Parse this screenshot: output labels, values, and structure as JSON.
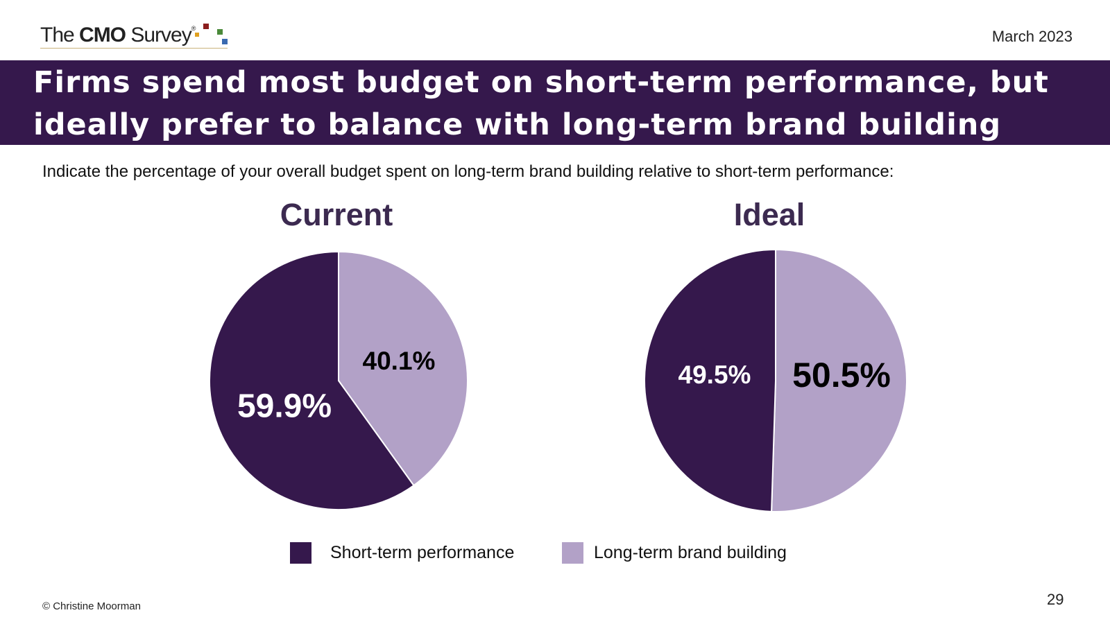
{
  "logo": {
    "prefix": "The ",
    "brand": "CMO",
    "suffix": " Survey",
    "registered": "®",
    "dot_colors": [
      "#8b1e1e",
      "#e0a020",
      "#4a8a3a",
      "#3a6ab0"
    ]
  },
  "date": "March 2023",
  "title": "Firms spend most budget on short-term performance, but ideally prefer to balance with long-term brand building",
  "question": "Indicate the percentage of your overall budget spent on long-term brand building relative to short-term performance:",
  "colors": {
    "banner": "#35184c",
    "short_term": "#35184c",
    "long_term": "#b2a1c7"
  },
  "chart_data": [
    {
      "type": "pie",
      "title": "Current",
      "categories": [
        "Short-term performance",
        "Long-term brand building"
      ],
      "values": [
        59.9,
        40.1
      ],
      "labels": [
        "59.9%",
        "40.1%"
      ]
    },
    {
      "type": "pie",
      "title": "Ideal",
      "categories": [
        "Short-term performance",
        "Long-term brand building"
      ],
      "values": [
        49.5,
        50.5
      ],
      "labels": [
        "49.5%",
        "50.5%"
      ]
    }
  ],
  "legend": [
    {
      "label": "Short-term performance",
      "color": "#35184c"
    },
    {
      "label": "Long-term brand building",
      "color": "#b2a1c7"
    }
  ],
  "footer": {
    "copyright": "© Christine Moorman",
    "page_number": "29"
  }
}
